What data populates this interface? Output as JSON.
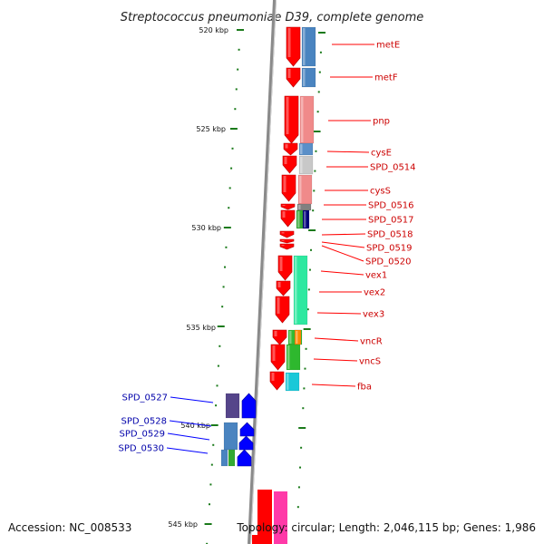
{
  "title": "Streptococcus pneumoniae D39, complete genome",
  "accession_text": "Accession: NC_008533",
  "topology_text": "Topology: circular; Length: 2,046,115 bp; Genes: 1,986",
  "scale_labels": [
    "520 kbp",
    "525 kbp",
    "530 kbp",
    "535 kbp",
    "540 kbp",
    "545 kbp"
  ],
  "colors": {
    "forward_gene": "#ff0000",
    "reverse_gene": "#0000ff",
    "forward_label": "#cc0000",
    "reverse_label": "#0000aa",
    "tick": "#1a7a1a",
    "backbone": "#888888"
  },
  "forward_genes": [
    {
      "name": "metE"
    },
    {
      "name": "metF"
    },
    {
      "name": "pnp"
    },
    {
      "name": "cysE"
    },
    {
      "name": "SPD_0514"
    },
    {
      "name": "cysS"
    },
    {
      "name": "SPD_0516"
    },
    {
      "name": "SPD_0517"
    },
    {
      "name": "SPD_0518"
    },
    {
      "name": "SPD_0519"
    },
    {
      "name": "SPD_0520"
    },
    {
      "name": "vex1"
    },
    {
      "name": "vex2"
    },
    {
      "name": "vex3"
    },
    {
      "name": "vncR"
    },
    {
      "name": "vncS"
    },
    {
      "name": "fba"
    }
  ],
  "reverse_genes": [
    {
      "name": "SPD_0527"
    },
    {
      "name": "SPD_0528"
    },
    {
      "name": "SPD_0529"
    },
    {
      "name": "SPD_0530"
    }
  ]
}
